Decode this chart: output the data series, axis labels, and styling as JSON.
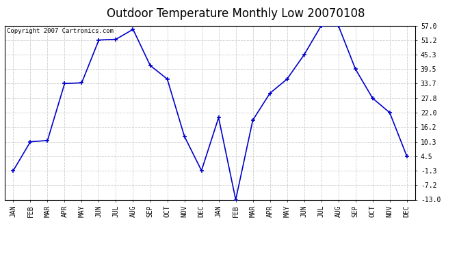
{
  "title": "Outdoor Temperature Monthly Low 20070108",
  "copyright_text": "Copyright 2007 Cartronics.com",
  "x_labels": [
    "JAN",
    "FEB",
    "MAR",
    "APR",
    "MAY",
    "JUN",
    "JUL",
    "AUG",
    "SEP",
    "OCT",
    "NOV",
    "DEC",
    "JAN",
    "FEB",
    "MAR",
    "APR",
    "MAY",
    "JUN",
    "JUL",
    "AUG",
    "SEP",
    "OCT",
    "NOV",
    "DEC"
  ],
  "y_values": [
    -1.3,
    10.3,
    10.8,
    33.7,
    34.0,
    51.2,
    51.5,
    55.5,
    41.0,
    35.5,
    12.5,
    -1.3,
    20.0,
    -13.0,
    19.0,
    29.8,
    35.5,
    45.3,
    57.0,
    57.0,
    39.5,
    27.8,
    22.0,
    4.5
  ],
  "y_ticks": [
    57.0,
    51.2,
    45.3,
    39.5,
    33.7,
    27.8,
    22.0,
    16.2,
    10.3,
    4.5,
    -1.3,
    -7.2,
    -13.0
  ],
  "y_min": -13.0,
  "y_max": 57.0,
  "line_color": "#0000cc",
  "marker": "+",
  "marker_size": 5,
  "line_width": 1.2,
  "bg_color": "#ffffff",
  "plot_bg_color": "#ffffff",
  "grid_color": "#cccccc",
  "title_fontsize": 12,
  "tick_fontsize": 7,
  "copyright_fontsize": 6.5
}
